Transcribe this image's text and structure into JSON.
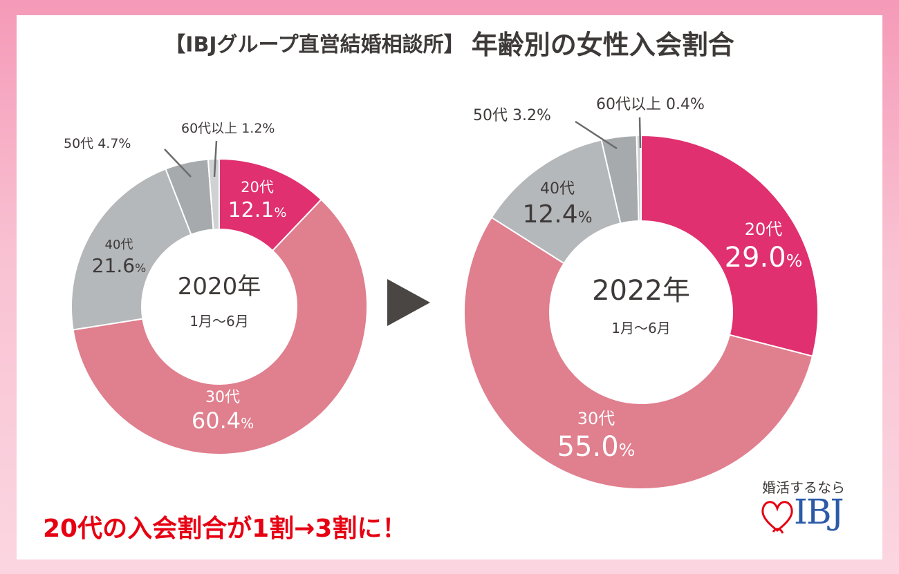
{
  "title": {
    "prefix": "【IBJグループ直営結婚相談所】",
    "main": "年齢別の女性入会割合"
  },
  "chart_data": [
    {
      "type": "pie",
      "variant": "donut",
      "center_label": "2020年",
      "center_sub": "1月〜6月",
      "slices": [
        {
          "label": "20代",
          "value": 12.1,
          "display": "12.1",
          "color": "#e0306f"
        },
        {
          "label": "30代",
          "value": 60.4,
          "display": "60.4",
          "color": "#e07f8e"
        },
        {
          "label": "40代",
          "value": 21.6,
          "display": "21.6",
          "color": "#b5b8bb"
        },
        {
          "label": "50代",
          "value": 4.7,
          "display": "4.7",
          "color": "#a7aaad"
        },
        {
          "label": "60代以上",
          "value": 1.2,
          "display": "1.2",
          "color": "#cfd1d3"
        }
      ]
    },
    {
      "type": "pie",
      "variant": "donut",
      "center_label": "2022年",
      "center_sub": "1月〜6月",
      "slices": [
        {
          "label": "20代",
          "value": 29.0,
          "display": "29.0",
          "color": "#e0306f"
        },
        {
          "label": "30代",
          "value": 55.0,
          "display": "55.0",
          "color": "#e07f8e"
        },
        {
          "label": "40代",
          "value": 12.4,
          "display": "12.4",
          "color": "#b5b8bb"
        },
        {
          "label": "50代",
          "value": 3.2,
          "display": "3.2",
          "color": "#a7aaad"
        },
        {
          "label": "60代以上",
          "value": 0.4,
          "display": "0.4",
          "color": "#cfd1d3"
        }
      ]
    }
  ],
  "percent_sign": "%",
  "arrow_icon": "play-triangle-icon",
  "headline": "20代の入会割合が1割→3割に！",
  "logo": {
    "tagline": "婚活するなら",
    "brand": "IBJ",
    "icon": "heart-icon",
    "color": "#2b5aa8",
    "heart_color": "#e60012"
  },
  "colors": {
    "background": "#f8b4c9",
    "text": "#3e3a39",
    "accent": "#e60012"
  }
}
